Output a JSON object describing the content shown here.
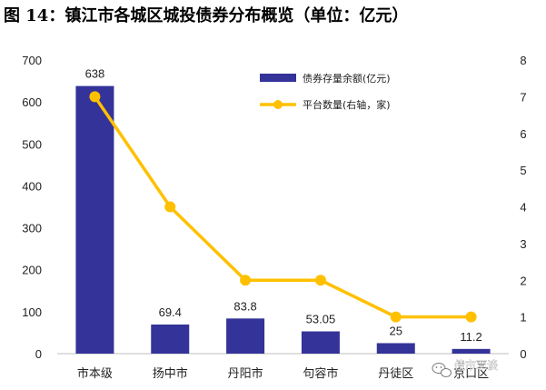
{
  "chart_data": {
    "title": "图 14：镇江市各城区城投债券分布概览（单位：亿元）",
    "type": "bar+line",
    "categories": [
      "市本级",
      "扬中市",
      "丹阳市",
      "句容市",
      "丹徒区",
      "京口区"
    ],
    "series": [
      {
        "name": "债券存量余额(亿元)",
        "type": "bar",
        "axis": "left",
        "values": [
          638,
          69.4,
          83.8,
          53.05,
          25,
          11.2
        ],
        "labels": [
          "638",
          "69.4",
          "83.8",
          "53.05",
          "25",
          "11.2"
        ],
        "color": "#333399"
      },
      {
        "name": "平台数量(右轴，家)",
        "type": "line",
        "axis": "right",
        "values": [
          7,
          4,
          2,
          2,
          1,
          1
        ],
        "color": "#FFC000"
      }
    ],
    "y_left": {
      "min": 0,
      "max": 700,
      "step": 100,
      "ticks": [
        "0",
        "100",
        "200",
        "300",
        "400",
        "500",
        "600",
        "700"
      ]
    },
    "y_right": {
      "min": 0,
      "max": 8,
      "step": 1,
      "ticks": [
        "0",
        "1",
        "2",
        "3",
        "4",
        "5",
        "6",
        "7",
        "8"
      ]
    },
    "grid": false,
    "legend_position": "top-right"
  },
  "watermark": {
    "text": "债市覃谈",
    "icon": "wechat-icon"
  }
}
